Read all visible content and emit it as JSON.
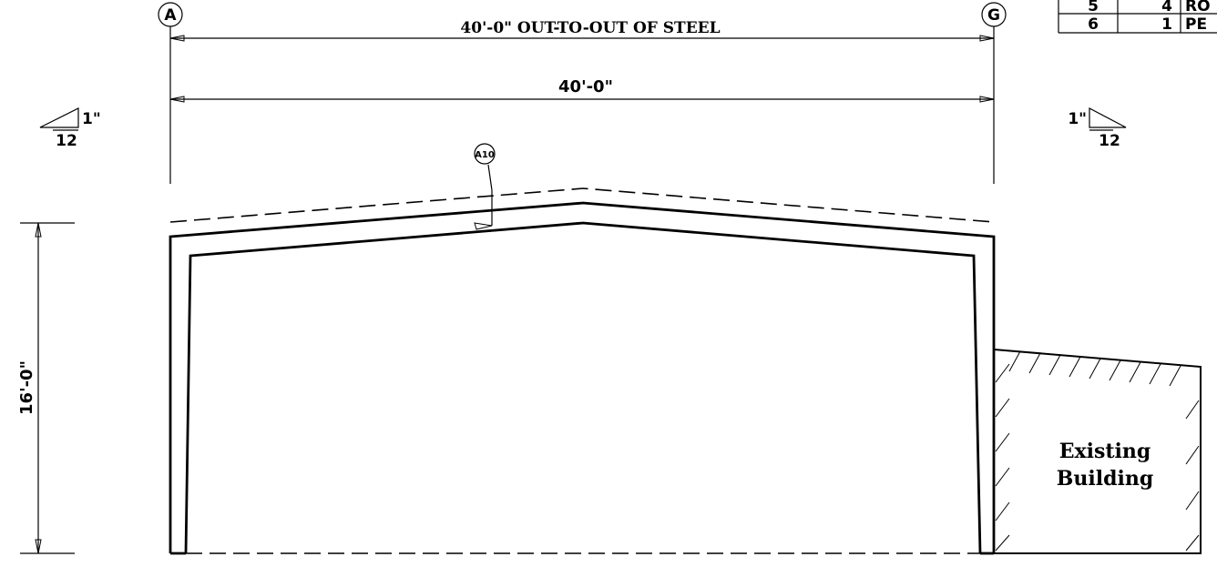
{
  "gridlines": {
    "left": "A",
    "right": "G"
  },
  "dimensions": {
    "out_to_out": "40'-0\" OUT-TO-OUT OF STEEL",
    "span": "40'-0\"",
    "eave_height": "16'-0\""
  },
  "roof_slope": {
    "left_rise": "1\"",
    "left_run": "12",
    "right_rise": "1\"",
    "right_run": "12"
  },
  "callout": {
    "tag": "A10"
  },
  "existing_building": {
    "line1": "Existing",
    "line2": "Building"
  },
  "schedule_fragment": {
    "rows": [
      {
        "mark": "5",
        "qty": "4",
        "desc": "RO"
      },
      {
        "mark": "6",
        "qty": "1",
        "desc": "PE"
      }
    ]
  }
}
